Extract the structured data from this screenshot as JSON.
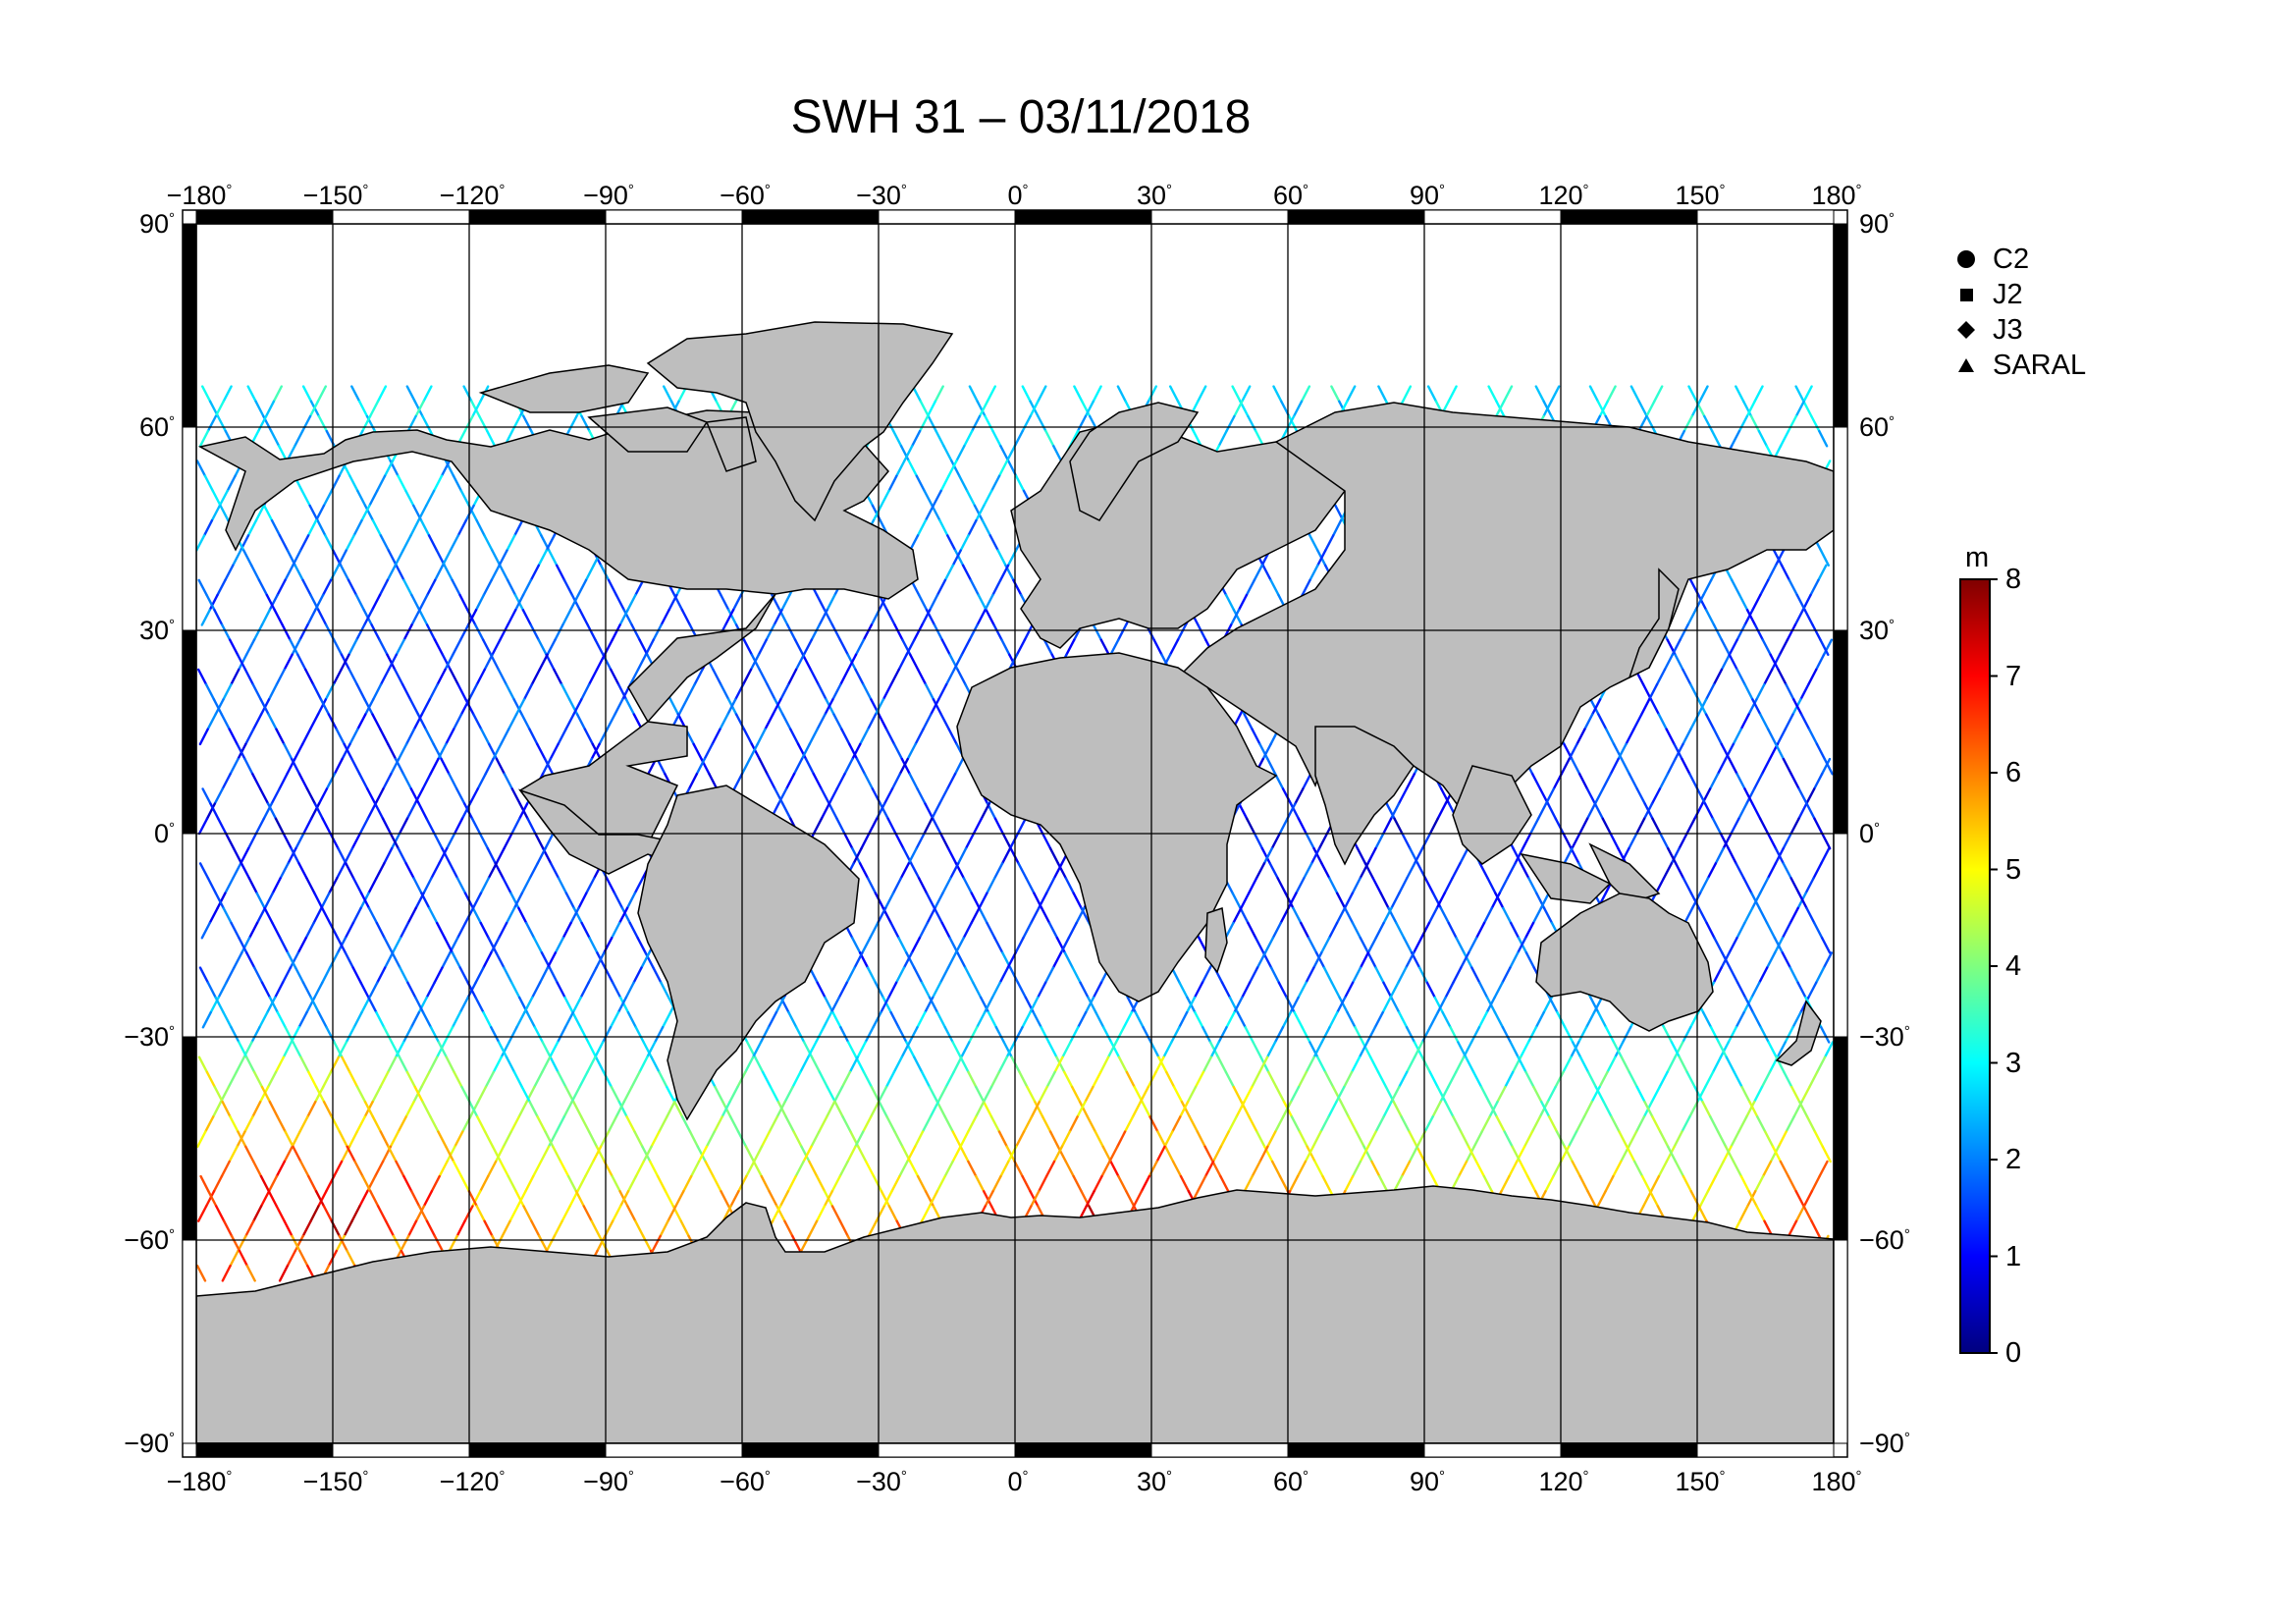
{
  "title": "SWH 31 – 03/11/2018",
  "lon_ticks": [
    "−180",
    "−150",
    "−120",
    "−90",
    "−60",
    "−30",
    "0",
    "30",
    "60",
    "90",
    "120",
    "150",
    "180"
  ],
  "lat_ticks": [
    "90",
    "60",
    "30",
    "0",
    "−30",
    "−60",
    "−90"
  ],
  "degree_symbol": "°",
  "legend": [
    {
      "label": "C2",
      "symbol": "circle"
    },
    {
      "label": "J2",
      "symbol": "square"
    },
    {
      "label": "J3",
      "symbol": "diamond"
    },
    {
      "label": "SARAL",
      "symbol": "triangle"
    }
  ],
  "colorbar": {
    "unit": "m",
    "min": 0,
    "max": 8,
    "labels": [
      "8",
      "7",
      "6",
      "5",
      "4",
      "3",
      "2",
      "1",
      "0"
    ],
    "colors": [
      "#00007f",
      "#0000ff",
      "#007fff",
      "#00ffff",
      "#7fff7f",
      "#ffff00",
      "#ff7f00",
      "#ff0000",
      "#7f0000"
    ]
  },
  "map": {
    "projection": "equirectangular",
    "lon_range": [
      -180,
      180
    ],
    "lat_range": [
      -90,
      90
    ],
    "land_color": "#bebebe",
    "ocean_color": "#ffffff",
    "grid": true
  }
}
